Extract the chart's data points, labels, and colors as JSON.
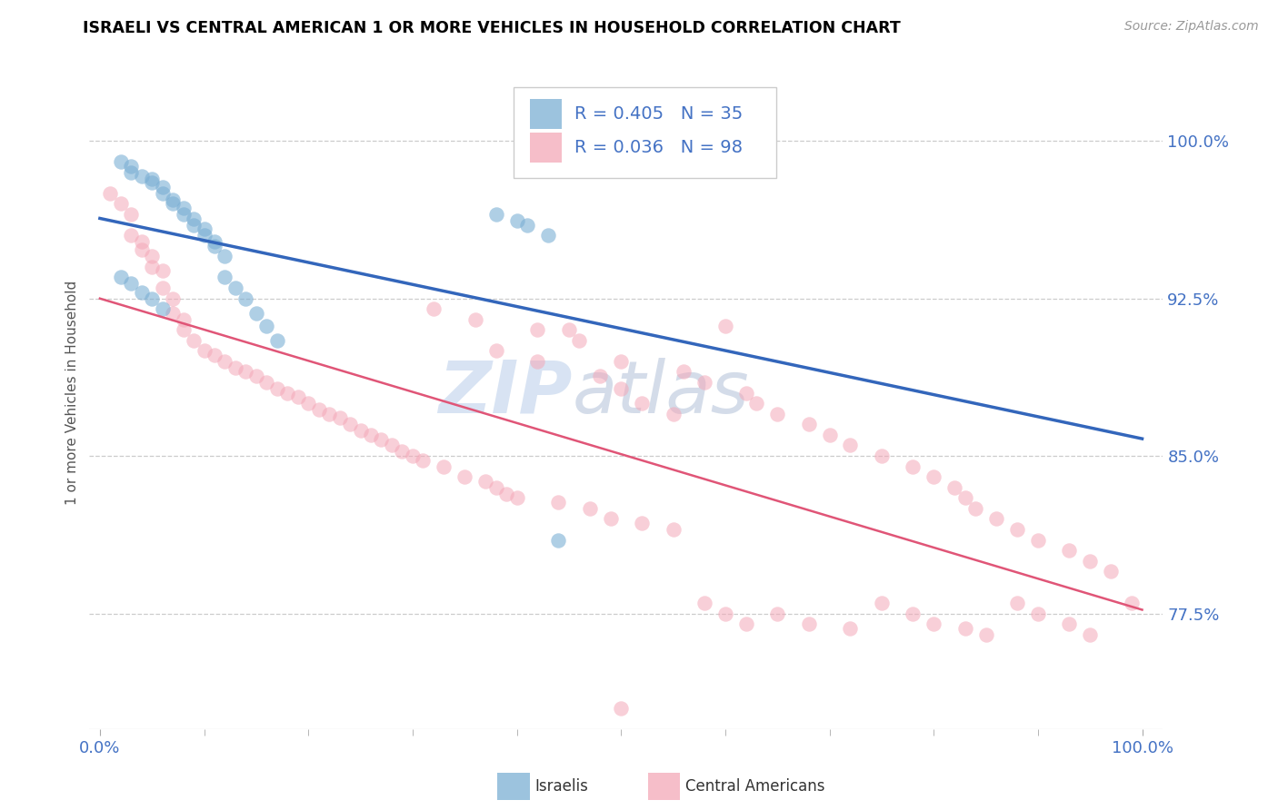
{
  "title": "ISRAELI VS CENTRAL AMERICAN 1 OR MORE VEHICLES IN HOUSEHOLD CORRELATION CHART",
  "source": "Source: ZipAtlas.com",
  "ylabel": "1 or more Vehicles in Household",
  "ytick_labels": [
    "77.5%",
    "85.0%",
    "92.5%",
    "100.0%"
  ],
  "ytick_values": [
    0.775,
    0.85,
    0.925,
    1.0
  ],
  "xtick_labels": [
    "0.0%",
    "100.0%"
  ],
  "xtick_values": [
    0.0,
    1.0
  ],
  "xlim": [
    -0.01,
    1.02
  ],
  "ylim": [
    0.72,
    1.04
  ],
  "legend_r1": "R = 0.405",
  "legend_n1": "N = 35",
  "legend_r2": "R = 0.036",
  "legend_n2": "N = 98",
  "legend_label1": "Israelis",
  "legend_label2": "Central Americans",
  "watermark_left": "ZIP",
  "watermark_right": "atlas",
  "title_fontsize": 13,
  "axis_label_color": "#4472c4",
  "tick_label_color": "#888888",
  "blue_color": "#7bafd4",
  "pink_color": "#f4a8b8",
  "trend_blue_color": "#3366bb",
  "trend_pink_color": "#e05577",
  "israelis_x": [
    0.02,
    0.03,
    0.03,
    0.04,
    0.05,
    0.05,
    0.06,
    0.06,
    0.07,
    0.07,
    0.08,
    0.08,
    0.09,
    0.09,
    0.1,
    0.1,
    0.11,
    0.11,
    0.12,
    0.12,
    0.13,
    0.14,
    0.15,
    0.16,
    0.17,
    0.02,
    0.03,
    0.04,
    0.05,
    0.06,
    0.38,
    0.4,
    0.41,
    0.43,
    0.44
  ],
  "israelis_y": [
    0.99,
    0.988,
    0.985,
    0.983,
    0.982,
    0.98,
    0.978,
    0.975,
    0.972,
    0.97,
    0.968,
    0.965,
    0.963,
    0.96,
    0.958,
    0.955,
    0.952,
    0.95,
    0.945,
    0.935,
    0.93,
    0.925,
    0.918,
    0.912,
    0.905,
    0.935,
    0.932,
    0.928,
    0.925,
    0.92,
    0.965,
    0.962,
    0.96,
    0.955,
    0.81
  ],
  "central_x": [
    0.01,
    0.02,
    0.03,
    0.03,
    0.04,
    0.04,
    0.05,
    0.05,
    0.06,
    0.06,
    0.07,
    0.07,
    0.08,
    0.08,
    0.09,
    0.1,
    0.11,
    0.12,
    0.13,
    0.14,
    0.15,
    0.16,
    0.17,
    0.18,
    0.19,
    0.2,
    0.21,
    0.22,
    0.23,
    0.24,
    0.25,
    0.26,
    0.27,
    0.28,
    0.29,
    0.3,
    0.31,
    0.32,
    0.33,
    0.35,
    0.36,
    0.37,
    0.38,
    0.39,
    0.4,
    0.42,
    0.44,
    0.45,
    0.46,
    0.47,
    0.49,
    0.5,
    0.52,
    0.55,
    0.56,
    0.58,
    0.6,
    0.62,
    0.63,
    0.65,
    0.68,
    0.7,
    0.72,
    0.75,
    0.78,
    0.8,
    0.82,
    0.83,
    0.84,
    0.86,
    0.88,
    0.9,
    0.93,
    0.95,
    0.97,
    0.99,
    0.38,
    0.42,
    0.48,
    0.5,
    0.52,
    0.55,
    0.58,
    0.6,
    0.62,
    0.65,
    0.68,
    0.72,
    0.75,
    0.78,
    0.8,
    0.83,
    0.85,
    0.88,
    0.9,
    0.93,
    0.95,
    0.5
  ],
  "central_y": [
    0.975,
    0.97,
    0.965,
    0.955,
    0.952,
    0.948,
    0.945,
    0.94,
    0.938,
    0.93,
    0.925,
    0.918,
    0.915,
    0.91,
    0.905,
    0.9,
    0.898,
    0.895,
    0.892,
    0.89,
    0.888,
    0.885,
    0.882,
    0.88,
    0.878,
    0.875,
    0.872,
    0.87,
    0.868,
    0.865,
    0.862,
    0.86,
    0.858,
    0.855,
    0.852,
    0.85,
    0.848,
    0.92,
    0.845,
    0.84,
    0.915,
    0.838,
    0.835,
    0.832,
    0.83,
    0.91,
    0.828,
    0.91,
    0.905,
    0.825,
    0.82,
    0.895,
    0.818,
    0.815,
    0.89,
    0.885,
    0.912,
    0.88,
    0.875,
    0.87,
    0.865,
    0.86,
    0.855,
    0.85,
    0.845,
    0.84,
    0.835,
    0.83,
    0.825,
    0.82,
    0.815,
    0.81,
    0.805,
    0.8,
    0.795,
    0.78,
    0.9,
    0.895,
    0.888,
    0.882,
    0.875,
    0.87,
    0.78,
    0.775,
    0.77,
    0.775,
    0.77,
    0.768,
    0.78,
    0.775,
    0.77,
    0.768,
    0.765,
    0.78,
    0.775,
    0.77,
    0.765,
    0.73
  ]
}
